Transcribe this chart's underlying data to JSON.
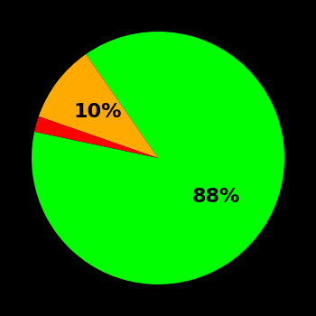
{
  "slices": [
    88,
    10,
    2
  ],
  "colors": [
    "#00ff00",
    "#ffaa00",
    "#ff0000"
  ],
  "background_color": "#000000",
  "text_color": "#000000",
  "startangle": 168,
  "counterclock": true,
  "label_green": "88%",
  "label_yellow": "10%",
  "label_green_r": 0.55,
  "label_yellow_r": 0.6,
  "fontsize": 16,
  "figsize": [
    3.5,
    3.5
  ],
  "dpi": 100
}
